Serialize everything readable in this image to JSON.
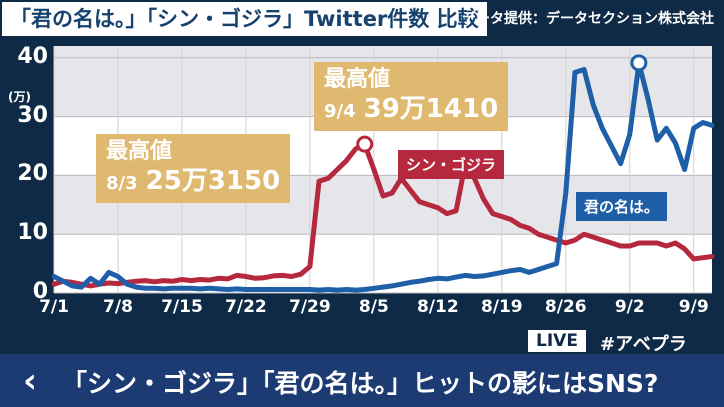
{
  "title": "「君の名は。」「シン・ゴジラ」Twitter件数 比較",
  "source": "データ提供：データセクション株式会社",
  "colors": {
    "shin_godzilla": "#b5283e",
    "kimi_no_na_wa": "#1e5fa8",
    "callout": "#e0b970"
  },
  "callouts": [
    {
      "label": "最高値",
      "date": "8/3",
      "value": "25万3150"
    },
    {
      "label": "最高値",
      "date": "9/4",
      "value": "39万1410"
    }
  ],
  "overlay": {
    "live": "LIVE",
    "hashtag": "#アベプラ",
    "caption": "「シン・ゴジラ」「君の名は。」ヒットの影にはSNS?",
    "back_icon": "chevron-left-icon"
  },
  "chart_data": {
    "type": "line",
    "ylabel": "(万)",
    "ylim": [
      0,
      42
    ],
    "yticks": [
      0,
      10,
      20,
      30,
      40
    ],
    "x_tick_labels": [
      "7/1",
      "7/8",
      "7/15",
      "7/22",
      "7/29",
      "8/5",
      "8/12",
      "8/19",
      "8/26",
      "9/2",
      "9/9"
    ],
    "x_tick_days": [
      0,
      7,
      14,
      21,
      28,
      35,
      42,
      49,
      56,
      63,
      70
    ],
    "series": [
      {
        "name": "シン・ゴジラ",
        "x": [
          0,
          1,
          2,
          3,
          4,
          5,
          6,
          7,
          8,
          9,
          10,
          11,
          12,
          13,
          14,
          15,
          16,
          17,
          18,
          19,
          20,
          21,
          22,
          23,
          24,
          25,
          26,
          27,
          28,
          29,
          30,
          31,
          32,
          33,
          34,
          35,
          36,
          37,
          38,
          39,
          40,
          41,
          42,
          43,
          44,
          45,
          46,
          47,
          48,
          49,
          50,
          51,
          52,
          53,
          54,
          55,
          56,
          57,
          58,
          59,
          60,
          61,
          62,
          63,
          64,
          65,
          66,
          67,
          68,
          69,
          70,
          71,
          72
        ],
        "values": [
          1.5,
          2.0,
          1.8,
          1.5,
          1.2,
          1.5,
          1.7,
          1.6,
          1.8,
          2.0,
          2.1,
          1.9,
          2.1,
          2.0,
          2.3,
          2.1,
          2.3,
          2.2,
          2.5,
          2.4,
          3.0,
          2.8,
          2.5,
          2.6,
          2.9,
          3.0,
          2.8,
          3.2,
          4.5,
          19.0,
          19.5,
          21.0,
          22.5,
          24.5,
          25.3,
          21.0,
          16.5,
          17.0,
          19.5,
          17.5,
          15.5,
          15.0,
          14.5,
          13.5,
          14.0,
          22.0,
          19.5,
          16.0,
          13.5,
          13.0,
          12.5,
          11.5,
          11.0,
          10.0,
          9.5,
          9.0,
          8.5,
          9.0,
          10.0,
          9.5,
          9.0,
          8.5,
          8.0,
          8.0,
          8.5,
          8.5,
          8.5,
          8.0,
          8.5,
          7.5,
          5.8,
          6.0,
          6.2
        ]
      },
      {
        "name": "君の名は。",
        "x": [
          0,
          1,
          2,
          3,
          4,
          5,
          6,
          7,
          8,
          9,
          10,
          11,
          12,
          13,
          14,
          15,
          16,
          17,
          18,
          19,
          20,
          21,
          22,
          23,
          24,
          25,
          26,
          27,
          28,
          29,
          30,
          31,
          32,
          33,
          34,
          35,
          36,
          37,
          38,
          39,
          40,
          41,
          42,
          43,
          44,
          45,
          46,
          47,
          48,
          49,
          50,
          51,
          52,
          53,
          54,
          55,
          56,
          57,
          58,
          59,
          60,
          61,
          62,
          63,
          64,
          65,
          66,
          67,
          68,
          69,
          70,
          71,
          72
        ],
        "values": [
          2.8,
          2.0,
          1.2,
          1.0,
          2.5,
          1.5,
          3.5,
          2.8,
          1.5,
          1.0,
          0.8,
          0.8,
          0.7,
          0.8,
          0.8,
          0.8,
          0.7,
          0.8,
          0.7,
          0.6,
          0.7,
          0.6,
          0.6,
          0.6,
          0.6,
          0.6,
          0.6,
          0.6,
          0.6,
          0.5,
          0.6,
          0.5,
          0.6,
          0.5,
          0.6,
          0.8,
          1.0,
          1.2,
          1.5,
          1.8,
          2.0,
          2.3,
          2.5,
          2.4,
          2.7,
          3.0,
          2.8,
          2.9,
          3.2,
          3.5,
          3.8,
          4.0,
          3.5,
          4.0,
          4.5,
          5.0,
          17.0,
          37.5,
          38.0,
          32.0,
          28.0,
          25.0,
          22.0,
          27.0,
          39.1,
          33.0,
          26.0,
          28.0,
          25.5,
          21.0,
          28.0,
          29.0,
          28.5
        ]
      }
    ],
    "peaks": [
      {
        "series": "シン・ゴジラ",
        "x": 34,
        "y": 25.315
      },
      {
        "series": "君の名は。",
        "x": 64,
        "y": 39.141
      }
    ],
    "grid": true,
    "background_bands": true
  }
}
